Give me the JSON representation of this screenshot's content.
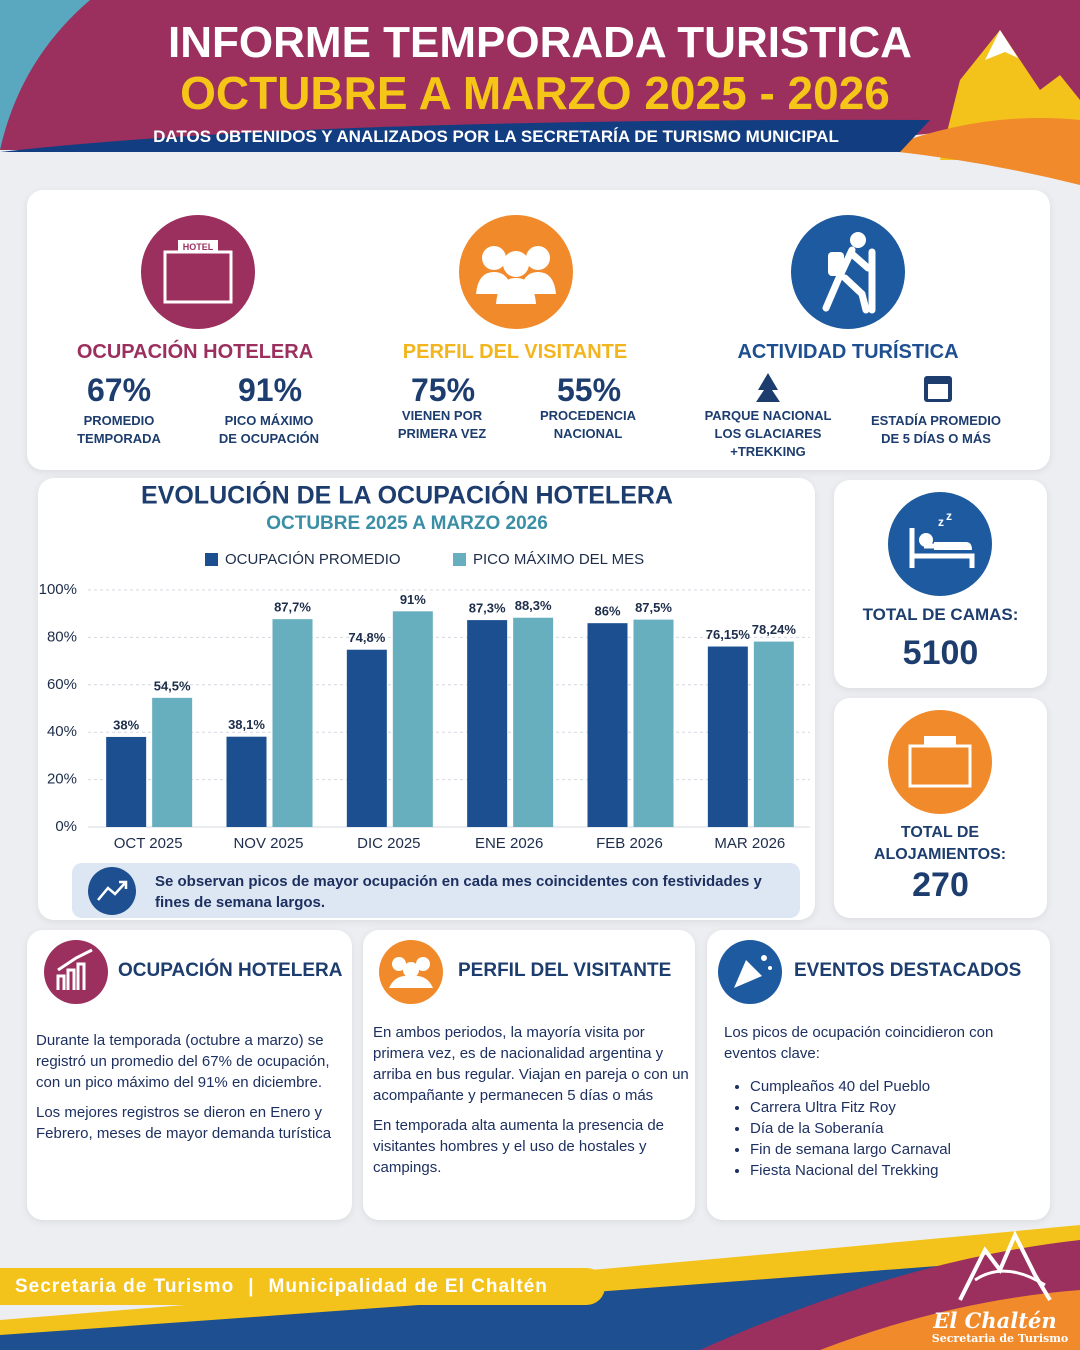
{
  "header": {
    "title": "INFORME TEMPORADA TURISTICA",
    "subtitle": "OCTUBRE A MARZO 2025 - 2026",
    "source": "DATOS OBTENIDOS Y ANALIZADOS POR LA SECRETARÍA DE TURISMO MUNICIPAL"
  },
  "kpis": {
    "icon_label": "HOTEL",
    "sections": [
      {
        "title": "OCUPACIÓN HOTELERA",
        "stats": [
          {
            "value": "67%",
            "label": [
              "PROMEDIO",
              "TEMPORADA"
            ]
          },
          {
            "value": "91%",
            "label": [
              "PICO MÁXIMO",
              "DE OCUPACIÓN"
            ]
          }
        ]
      },
      {
        "title": "PERFIL DEL VISITANTE",
        "stats": [
          {
            "value": "75%",
            "label": [
              "VIENEN POR",
              "PRIMERA VEZ"
            ]
          },
          {
            "value": "55%",
            "label": [
              "PROCEDENCIA",
              "NACIONAL"
            ]
          }
        ]
      },
      {
        "title": "ACTIVIDAD TURÍSTICA",
        "stats": [
          {
            "label": [
              "PARQUE NACIONAL",
              "LOS GLACIARES",
              "+TREKKING"
            ]
          },
          {
            "label": [
              "ESTADÍA PROMEDIO",
              "DE 5 DÍAS O MÁS"
            ]
          }
        ]
      }
    ]
  },
  "chart_data": {
    "type": "bar",
    "title": "EVOLUCIÓN DE LA OCUPACIÓN HOTELERA",
    "subtitle": "OCTUBRE 2025 A MARZO 2026",
    "categories": [
      "OCT 2025",
      "NOV 2025",
      "DIC 2025",
      "ENE 2026",
      "FEB 2026",
      "MAR 2026"
    ],
    "series": [
      {
        "name": "OCUPACIÓN PROMEDIO",
        "color": "#1b4f8f",
        "values": [
          38,
          38.1,
          74.8,
          87.3,
          86,
          76.15
        ],
        "value_labels": [
          "38%",
          "38,1%",
          "74,8%",
          "87,3%",
          "86%",
          "76,15%"
        ]
      },
      {
        "name": "PICO MÁXIMO DEL MES",
        "color": "#67aebe",
        "values": [
          54.5,
          87.7,
          91,
          88.3,
          87.5,
          78.24
        ],
        "value_labels": [
          "54,5%",
          "87,7%",
          "91%",
          "88,3%",
          "87,5%",
          "78,24%"
        ]
      }
    ],
    "ylim": [
      0,
      100
    ],
    "yticks": [
      {
        "value": 0,
        "label": "0%"
      },
      {
        "value": 20,
        "label": "20%"
      },
      {
        "value": 40,
        "label": "40%"
      },
      {
        "value": 60,
        "label": "60%"
      },
      {
        "value": 80,
        "label": "80%"
      },
      {
        "value": 100,
        "label": "100%"
      }
    ],
    "grid": true,
    "legend": "top",
    "note": "Se observan picos de mayor ocupación en cada mes coincidentes con festividades y fines de semana largos."
  },
  "side": {
    "beds": {
      "label": "TOTAL DE CAMAS:",
      "value": 5100
    },
    "lodgings": {
      "label": "TOTAL DE ALOJAMIENTOS:",
      "value": 270
    }
  },
  "cards": [
    {
      "title": "OCUPACIÓN HOTELERA",
      "paragraphs": [
        "Durante la temporada (octubre a marzo) se registró un promedio del 67% de ocupación, con un pico máximo del 91% en diciembre.",
        "Los mejores registros se dieron en Enero y Febrero, meses de mayor demanda turística"
      ]
    },
    {
      "title": "PERFIL DEL VISITANTE",
      "paragraphs": [
        "En ambos periodos, la mayoría visita por primera vez, es de nacionalidad argentina y arriba en bus regular. Viajan en pareja o con un acompañante y permanecen 5 días o más",
        "En temporada alta aumenta la presencia de visitantes hombres y el uso de hostales y campings."
      ]
    },
    {
      "title": "EVENTOS DESTACADOS",
      "intro": "Los picos de ocupación coincidieron con eventos clave:",
      "bullets": [
        "Cumpleaños 40 del Pueblo",
        "Carrera Ultra Fitz Roy",
        "Día de la Soberanía",
        "Fin de semana largo Carnaval",
        "Fiesta Nacional del Trekking"
      ]
    }
  ],
  "footer": {
    "left": "Secretaria de Turismo",
    "right": "Municipalidad de El Chaltén",
    "logo_title": "El Chaltén",
    "logo_subtitle": "Secretaria de Turismo"
  }
}
